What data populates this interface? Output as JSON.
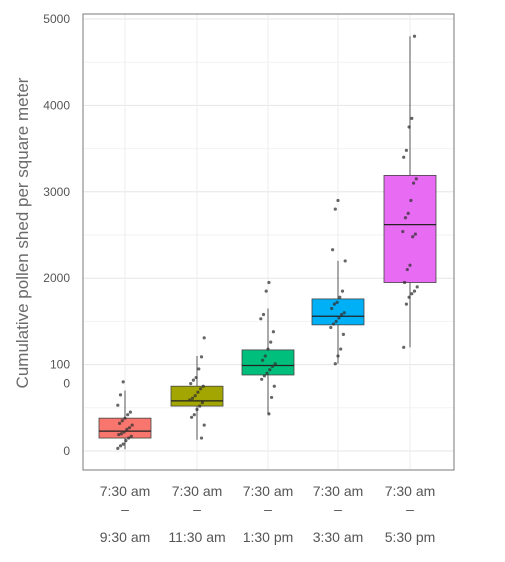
{
  "chart_data": {
    "type": "box",
    "ylabel": "Cumulative pollen shed per square meter",
    "xlabel": "",
    "ylim": [
      -200,
      5100
    ],
    "yticks": [
      {
        "value": 0,
        "label": "0"
      },
      {
        "value": 1000,
        "label": "100\n0"
      },
      {
        "value": 2000,
        "label": "2000"
      },
      {
        "value": 3000,
        "label": "3000"
      },
      {
        "value": 4000,
        "label": "4000"
      },
      {
        "value": 5000,
        "label": "5000"
      }
    ],
    "categories": [
      {
        "line1": "7:30 am",
        "line2": "–",
        "line3": "9:30 am"
      },
      {
        "line1": "7:30 am",
        "line2": "–",
        "line3": "11:30 am"
      },
      {
        "line1": "7:30 am",
        "line2": "–",
        "line3": "1:30 pm"
      },
      {
        "line1": "7:30 am",
        "line2": "–",
        "line3": "3:30 am"
      },
      {
        "line1": "7:30 am",
        "line2": "–",
        "line3": "5:30 pm"
      }
    ],
    "boxes": [
      {
        "color": "#f8766d",
        "min": 20,
        "q1": 150,
        "median": 230,
        "q3": 380,
        "max": 700
      },
      {
        "color": "#a3a500",
        "min": 130,
        "q1": 520,
        "median": 580,
        "q3": 750,
        "max": 1100
      },
      {
        "color": "#00bf7d",
        "min": 430,
        "q1": 880,
        "median": 990,
        "q3": 1170,
        "max": 1650
      },
      {
        "color": "#00b0f6",
        "min": 1010,
        "q1": 1460,
        "median": 1560,
        "q3": 1760,
        "max": 2200
      },
      {
        "color": "#e76bf3",
        "min": 1200,
        "q1": 1950,
        "median": 2620,
        "q3": 3190,
        "max": 4800
      }
    ],
    "points": [
      [
        30,
        60,
        80,
        120,
        150,
        170,
        190,
        200,
        220,
        250,
        270,
        300,
        320,
        350,
        380,
        420,
        450,
        530,
        650,
        800
      ],
      [
        150,
        300,
        390,
        420,
        480,
        520,
        560,
        590,
        610,
        640,
        680,
        720,
        750,
        780,
        820,
        850,
        950,
        1090,
        1310
      ],
      [
        430,
        620,
        750,
        830,
        870,
        900,
        940,
        980,
        1010,
        1050,
        1100,
        1180,
        1260,
        1380,
        1530,
        1580,
        1850,
        1950
      ],
      [
        1010,
        1100,
        1180,
        1350,
        1430,
        1470,
        1500,
        1540,
        1580,
        1600,
        1650,
        1700,
        1720,
        1780,
        1850,
        2200,
        2330,
        2800,
        2900
      ],
      [
        1200,
        1700,
        1780,
        1820,
        1850,
        1900,
        1950,
        2100,
        2150,
        2480,
        2510,
        2540,
        2700,
        2750,
        2900,
        3100,
        3150,
        3400,
        3480,
        3750,
        3850,
        4800
      ]
    ],
    "grid": true,
    "legend": "none"
  }
}
